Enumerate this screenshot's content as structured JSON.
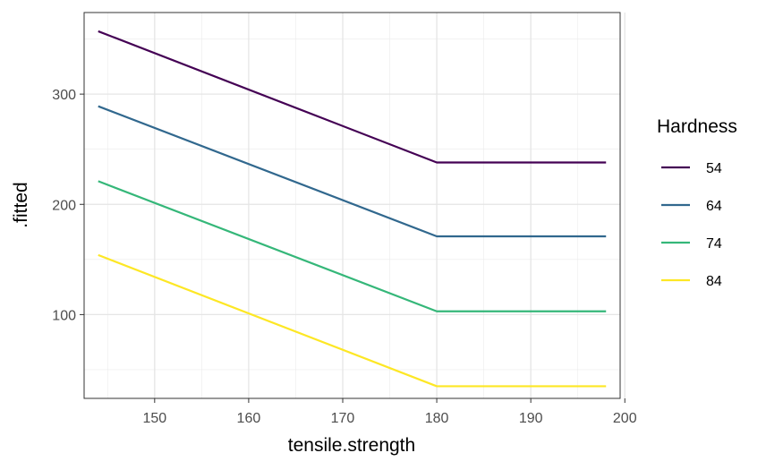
{
  "chart_data": {
    "type": "line",
    "xlabel": "tensile.strength",
    "ylabel": ".fitted",
    "xlim": [
      142.5,
      199.5
    ],
    "ylim": [
      24,
      374
    ],
    "x_ticks": [
      150,
      160,
      170,
      180,
      190,
      200
    ],
    "y_ticks": [
      100,
      200,
      300
    ],
    "x_minor_ticks": [
      145,
      155,
      165,
      175,
      185,
      195
    ],
    "y_minor_ticks": [
      50,
      150,
      250,
      350
    ],
    "grid": true,
    "legend": {
      "title": "Hardness",
      "placement": "right"
    },
    "series": [
      {
        "name": "54",
        "color": "#440154",
        "x": [
          144,
          180,
          198
        ],
        "y": [
          357,
          238,
          238
        ]
      },
      {
        "name": "64",
        "color": "#31688E",
        "x": [
          144,
          180,
          198
        ],
        "y": [
          289,
          171,
          171
        ]
      },
      {
        "name": "74",
        "color": "#35B779",
        "x": [
          144,
          180,
          198
        ],
        "y": [
          221,
          103,
          103
        ]
      },
      {
        "name": "84",
        "color": "#FDE725",
        "x": [
          144,
          180,
          198
        ],
        "y": [
          154,
          35,
          35
        ]
      }
    ]
  }
}
